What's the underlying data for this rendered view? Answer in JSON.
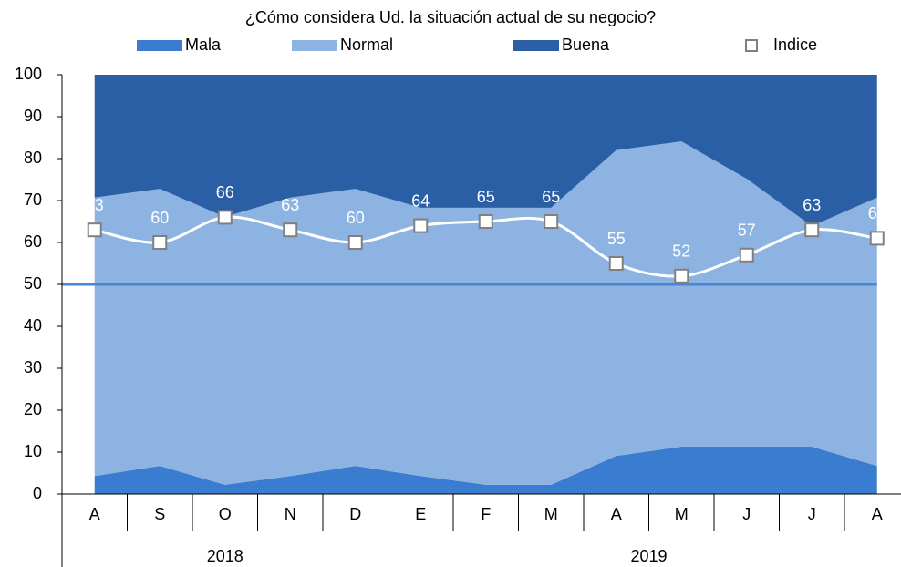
{
  "chart_data": {
    "type": "stacked_area",
    "subtitle": "¿Cómo considera Ud. la situación actual de su negocio?",
    "categories": [
      "A",
      "S",
      "O",
      "N",
      "D",
      "E",
      "F",
      "M",
      "A",
      "M",
      "J",
      "J",
      "A"
    ],
    "x_groups": [
      {
        "label": "2018",
        "span": 5
      },
      {
        "label": "2019",
        "span": 8
      }
    ],
    "series": [
      {
        "name": "Mala",
        "color": "#3a7dd0",
        "values": [
          4.3,
          6.7,
          2.2,
          4.3,
          6.7,
          4.3,
          2.2,
          2.2,
          9.1,
          11.3,
          11.3,
          11.3,
          6.7
        ]
      },
      {
        "name": "Normal",
        "color": "#8db3e2",
        "values": [
          66.4,
          66.1,
          63.9,
          66.4,
          66.1,
          64,
          66.1,
          66.1,
          72.9,
          72.8,
          63.9,
          52.6,
          64
        ]
      },
      {
        "name": "Buena",
        "color": "#2a5fa5",
        "values": [
          29.3,
          27.2,
          33.9,
          29.3,
          27.2,
          31.7,
          31.7,
          31.7,
          18,
          15.9,
          24.8,
          36.1,
          29.3
        ]
      }
    ],
    "line_series": {
      "name": "Indice",
      "color": "#ffffff",
      "marker_edge": "#808080",
      "values": [
        63,
        60,
        66,
        63,
        60,
        64,
        65,
        65,
        55,
        52,
        57,
        63,
        61
      ]
    },
    "reference_line": {
      "value": 50,
      "color": "#4a86d4"
    },
    "ylim": [
      0,
      100
    ],
    "yticks": [
      0,
      10,
      20,
      30,
      40,
      50,
      60,
      70,
      80,
      90,
      100
    ]
  }
}
